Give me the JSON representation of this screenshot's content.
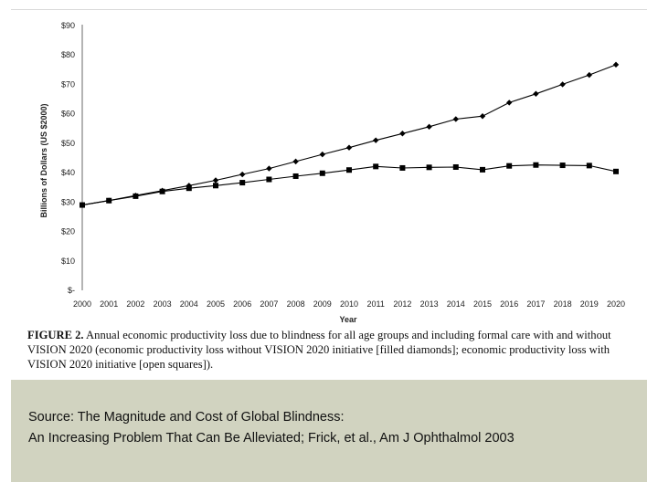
{
  "chart_data": {
    "type": "line",
    "title": "",
    "xlabel": "Year",
    "ylabel": "Billions of Dollars (US $2000)",
    "categories": [
      "2000",
      "2001",
      "2002",
      "2003",
      "2004",
      "2005",
      "2006",
      "2007",
      "2008",
      "2009",
      "2010",
      "2011",
      "2012",
      "2013",
      "2014",
      "2015",
      "2016",
      "2017",
      "2018",
      "2019",
      "2020"
    ],
    "y_tick_labels": [
      "$-",
      "$10",
      "$20",
      "$30",
      "$40",
      "$50",
      "$60",
      "$70",
      "$80",
      "$90"
    ],
    "ylim": [
      0,
      90
    ],
    "grid": false,
    "series": [
      {
        "marker": "diamond",
        "color": "#000000",
        "values": [
          29.0,
          30.5,
          32.2,
          33.9,
          35.6,
          37.4,
          39.4,
          41.4,
          43.8,
          46.2,
          48.5,
          51.0,
          53.3,
          55.6,
          58.2,
          59.2,
          63.8,
          66.8,
          70.0,
          73.2,
          76.7
        ]
      },
      {
        "marker": "square",
        "color": "#000000",
        "values": [
          29.0,
          30.5,
          32.0,
          33.6,
          34.7,
          35.6,
          36.6,
          37.7,
          38.8,
          39.8,
          40.9,
          42.1,
          41.6,
          41.8,
          41.9,
          41.0,
          42.3,
          42.6,
          42.5,
          42.4,
          40.4
        ]
      }
    ]
  },
  "caption": {
    "label": "FIGURE 2.",
    "text": "Annual economic productivity loss due to blindness for all age groups and including formal care with and without VISION 2020 (economic productivity loss without VISION 2020 initiative [filled diamonds]; economic productivity loss with VISION 2020 initiative [open squares])."
  },
  "source": {
    "line1": "Source: The Magnitude and Cost of Global Blindness:",
    "line2": "An Increasing Problem That Can Be Alleviated; Frick, et al., Am J Ophthalmol 2003"
  }
}
